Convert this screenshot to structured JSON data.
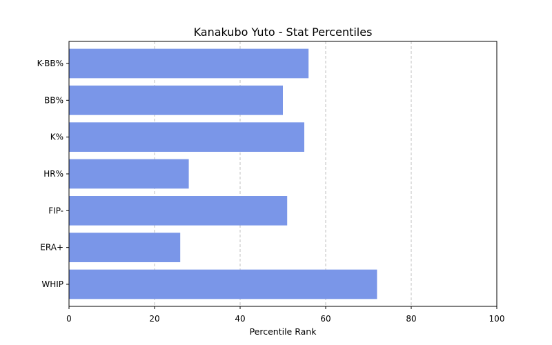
{
  "chart_data": {
    "type": "bar",
    "orientation": "horizontal",
    "title": "Kanakubo Yuto - Stat Percentiles",
    "xlabel": "Percentile Rank",
    "ylabel": "",
    "xlim": [
      0,
      100
    ],
    "xticks": [
      0,
      20,
      40,
      60,
      80,
      100
    ],
    "categories": [
      "K-BB%",
      "BB%",
      "K%",
      "HR%",
      "FIP-",
      "ERA+",
      "WHIP"
    ],
    "values": [
      56,
      50,
      55,
      28,
      51,
      26,
      72
    ],
    "bar_color": "#7a96e8",
    "grid": "x-axis, dashed",
    "legend": "none"
  }
}
